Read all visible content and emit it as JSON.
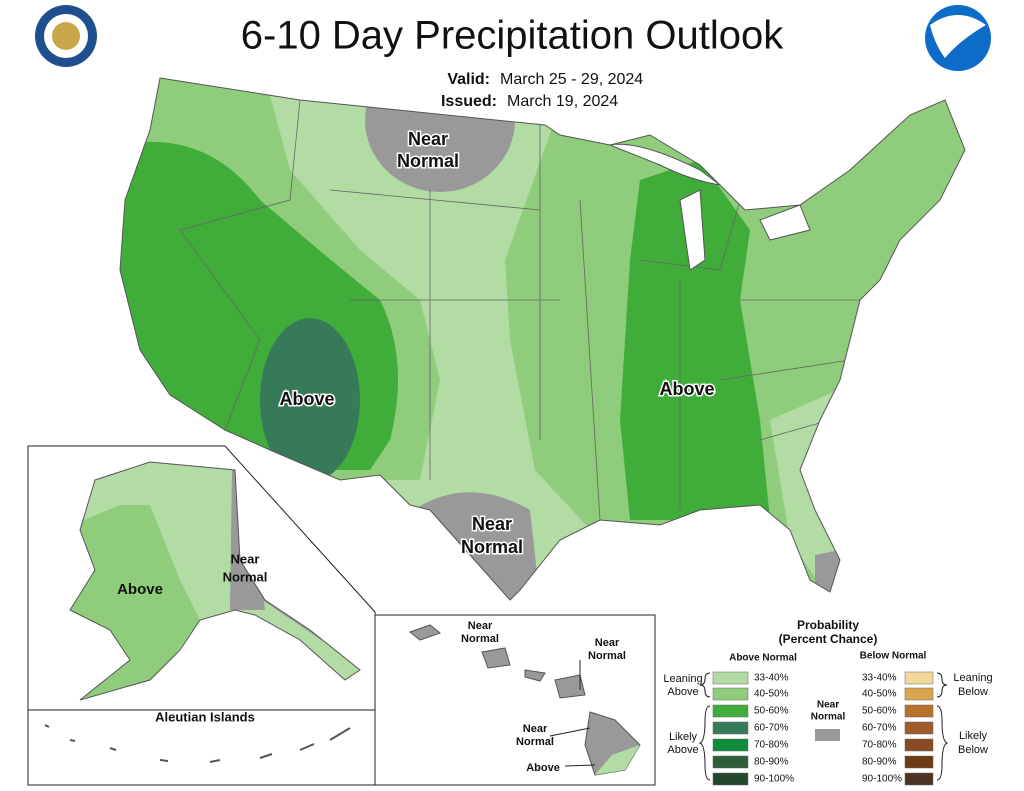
{
  "header": {
    "title": "6-10 Day Precipitation Outlook",
    "valid_label": "Valid:",
    "valid": "March 25 - 29, 2024",
    "issued_label": "Issued:",
    "issued": "March 19, 2024"
  },
  "map_labels": {
    "conus": [
      [
        "Near",
        "Normal"
      ],
      [
        "Above"
      ],
      [
        "Above"
      ],
      [
        "Near",
        "Normal"
      ]
    ],
    "alaska": [
      [
        "Above"
      ],
      [
        "Near",
        "Normal"
      ]
    ],
    "aleutian_title": "Aleutian Islands",
    "hawaii": [
      [
        "Near",
        "Normal"
      ],
      [
        "Near",
        "Normal"
      ],
      [
        "Near",
        "Normal"
      ],
      [
        "Above"
      ]
    ]
  },
  "legend": {
    "title": [
      "Probability",
      "(Percent Chance)"
    ],
    "above_header": "Above Normal",
    "below_header": "Below Normal",
    "near": {
      "label": [
        "Near",
        "Normal"
      ],
      "color": "#999999"
    },
    "above_groups": [
      [
        "Leaning",
        "Above"
      ],
      [
        "Likely",
        "Above"
      ]
    ],
    "below_groups": [
      [
        "Leaning",
        "Below"
      ],
      [
        "Likely",
        "Below"
      ]
    ],
    "above": [
      {
        "label": "33-40%",
        "color": "#b3dca5"
      },
      {
        "label": "40-50%",
        "color": "#8fcc7c"
      },
      {
        "label": "50-60%",
        "color": "#40ad3a"
      },
      {
        "label": "60-70%",
        "color": "#377a5a"
      },
      {
        "label": "70-80%",
        "color": "#0f8b3c"
      },
      {
        "label": "80-90%",
        "color": "#2f5e3a"
      },
      {
        "label": "90-100%",
        "color": "#24482c"
      }
    ],
    "below": [
      {
        "label": "33-40%",
        "color": "#f2d89a"
      },
      {
        "label": "40-50%",
        "color": "#d9a54f"
      },
      {
        "label": "50-60%",
        "color": "#b8732b"
      },
      {
        "label": "60-70%",
        "color": "#a05a2c"
      },
      {
        "label": "70-80%",
        "color": "#8a4a22"
      },
      {
        "label": "80-90%",
        "color": "#6e3a14"
      },
      {
        "label": "90-100%",
        "color": "#4a3526"
      }
    ]
  }
}
